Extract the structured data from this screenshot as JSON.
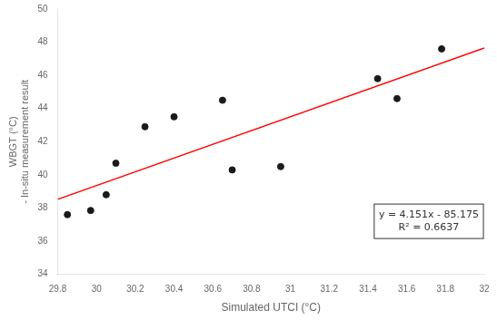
{
  "chart_data": {
    "type": "scatter",
    "xlabel": "Simulated UTCI (°C)",
    "ylabel": [
      "WBGT (°C)",
      "- In-situ measurement result"
    ],
    "series": [
      {
        "type": "scatter",
        "color": "#1a1a1a",
        "x": [
          29.85,
          29.97,
          30.05,
          30.1,
          30.25,
          30.4,
          30.65,
          30.7,
          30.95,
          31.45,
          31.55,
          31.78
        ],
        "values": [
          37.6,
          37.85,
          38.8,
          40.7,
          42.9,
          43.5,
          44.5,
          40.3,
          40.5,
          45.8,
          44.6,
          47.6
        ]
      },
      {
        "type": "line",
        "color": "#ff0000",
        "x": [
          29.8,
          32.0
        ],
        "values": [
          38.5248,
          47.657
        ]
      }
    ],
    "annotations": [
      "y = 4.151x - 85.175",
      "R² = 0.6637"
    ],
    "xlim": [
      29.8,
      32.0
    ],
    "ylim": [
      34,
      50
    ],
    "xticks": [
      29.8,
      30,
      30.2,
      30.4,
      30.6,
      30.8,
      31,
      31.2,
      31.4,
      31.6,
      31.8,
      32
    ],
    "yticks": [
      34,
      36,
      38,
      40,
      42,
      44,
      46,
      48,
      50
    ],
    "background_color": "#ffffff",
    "grid": false
  }
}
